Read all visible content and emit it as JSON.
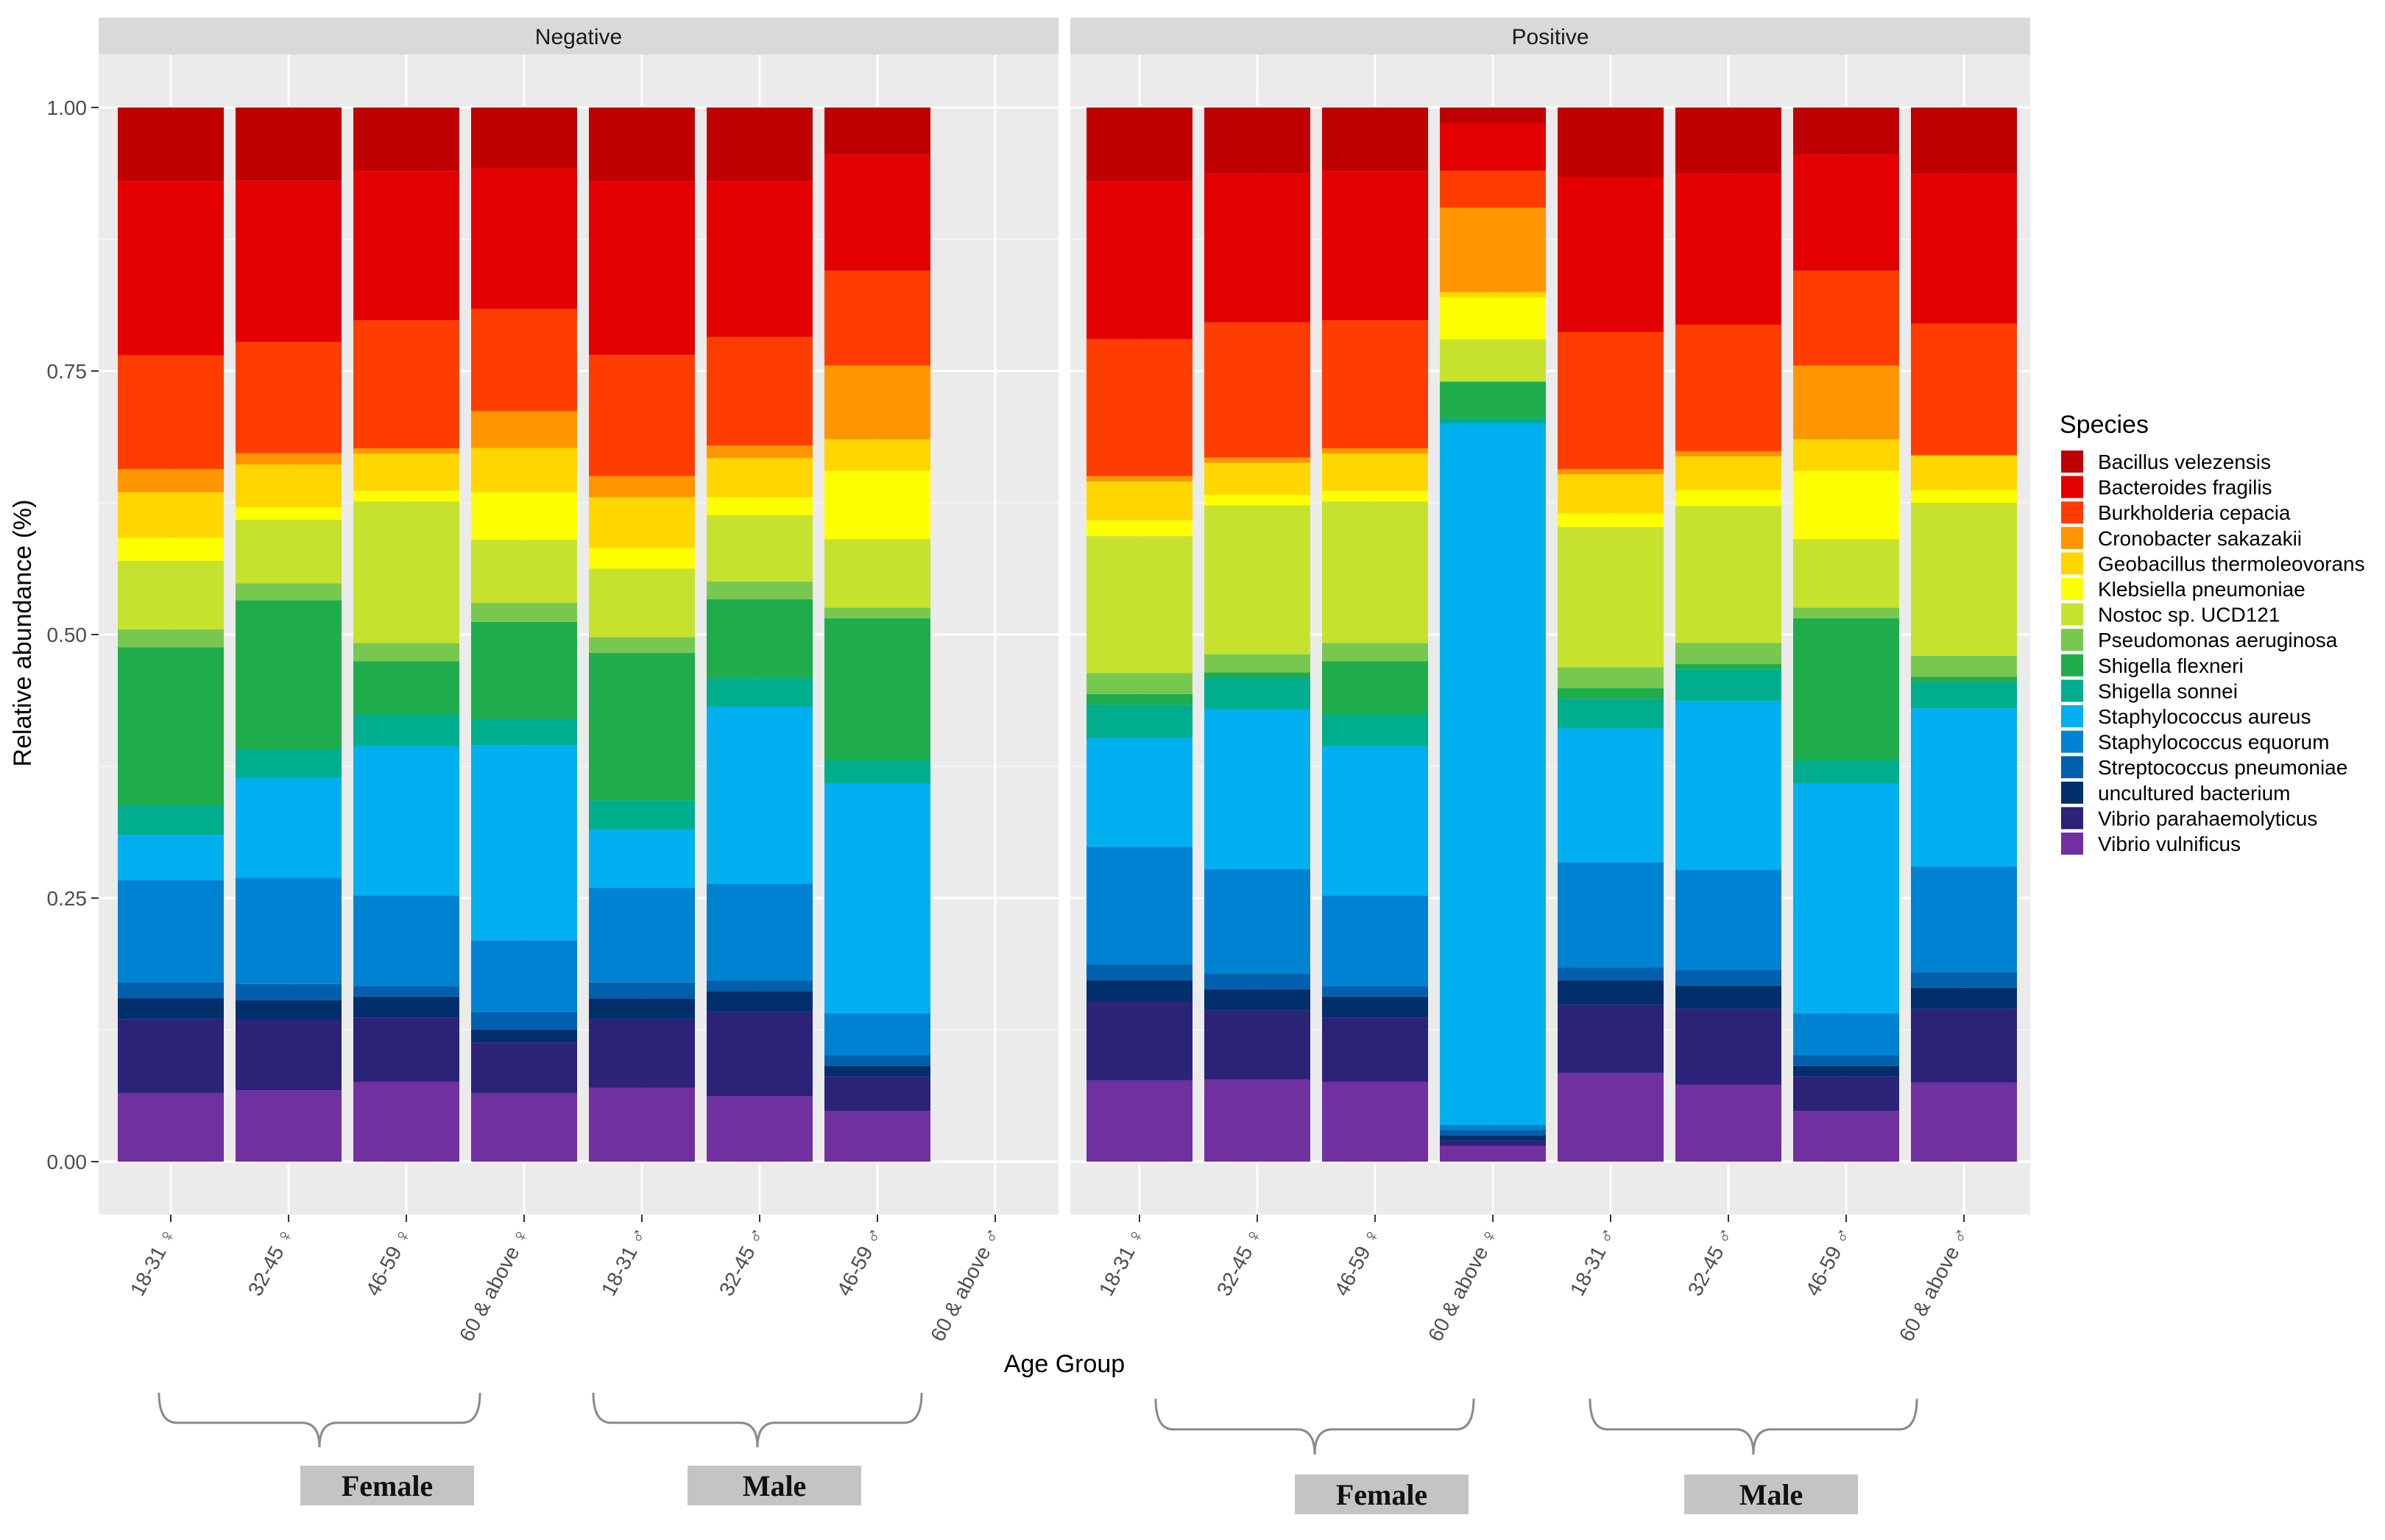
{
  "chart_data": {
    "type": "bar",
    "stacked": true,
    "ylabel": "Relative abundance (%)",
    "xlabel": "Age Group",
    "ylim": [
      0,
      1
    ],
    "yticks": [
      "0.00",
      "0.25",
      "0.50",
      "0.75",
      "1.00"
    ],
    "legend_title": "Species",
    "legend_position": "right",
    "species": [
      {
        "name": "Bacillus velezensis",
        "color": "#c00000"
      },
      {
        "name": "Bacteroides fragilis",
        "color": "#e30000"
      },
      {
        "name": "Burkholderia cepacia",
        "color": "#ff3d00"
      },
      {
        "name": "Cronobacter sakazakii",
        "color": "#ff9500"
      },
      {
        "name": "Geobacillus thermoleovorans",
        "color": "#ffd600"
      },
      {
        "name": "Klebsiella pneumoniae",
        "color": "#ffff00"
      },
      {
        "name": "Nostoc sp. UCD121",
        "color": "#c6e22e"
      },
      {
        "name": "Pseudomonas aeruginosa",
        "color": "#78c850"
      },
      {
        "name": "Shigella flexneri",
        "color": "#1fac4b"
      },
      {
        "name": "Shigella sonnei",
        "color": "#00ad8c"
      },
      {
        "name": "Staphylococcus aureus",
        "color": "#00b0f0"
      },
      {
        "name": "Staphylococcus equorum",
        "color": "#0082d2"
      },
      {
        "name": "Streptococcus pneumoniae",
        "color": "#0060ac"
      },
      {
        "name": "uncultured bacterium",
        "color": "#002f6c"
      },
      {
        "name": "Vibrio parahaemolyticus",
        "color": "#2a2378"
      },
      {
        "name": "Vibrio vulnificus",
        "color": "#7030a0"
      }
    ],
    "categories": [
      "18-31 ♀",
      "32-45 ♀",
      "46-59 ♀",
      "60 & above ♀",
      "18-31 ♂",
      "32-45 ♂",
      "46-59 ♂",
      "60 & above ♂"
    ],
    "panels": [
      {
        "title": "Negative",
        "bars": [
          [
            0.07,
            0.165,
            0.108,
            0.022,
            0.043,
            0.022,
            0.065,
            0.017,
            0.15,
            0.028,
            0.043,
            0.097,
            0.015,
            0.02,
            0.07,
            0.065
          ],
          [
            0.077,
            0.17,
            0.117,
            0.012,
            0.045,
            0.013,
            0.067,
            0.018,
            0.157,
            0.03,
            0.105,
            0.112,
            0.017,
            0.02,
            0.075,
            0.075
          ],
          [
            0.06,
            0.14,
            0.12,
            0.005,
            0.035,
            0.01,
            0.133,
            0.017,
            0.05,
            0.03,
            0.14,
            0.085,
            0.01,
            0.02,
            0.06,
            0.075
          ],
          [
            0.058,
            0.133,
            0.097,
            0.035,
            0.042,
            0.045,
            0.06,
            0.018,
            0.092,
            0.025,
            0.185,
            0.068,
            0.017,
            0.012,
            0.048,
            0.065
          ],
          [
            0.07,
            0.165,
            0.115,
            0.02,
            0.048,
            0.02,
            0.065,
            0.015,
            0.14,
            0.028,
            0.055,
            0.09,
            0.015,
            0.02,
            0.065,
            0.07
          ],
          [
            0.07,
            0.148,
            0.103,
            0.012,
            0.037,
            0.017,
            0.063,
            0.017,
            0.075,
            0.027,
            0.168,
            0.092,
            0.01,
            0.02,
            0.08,
            0.062
          ],
          [
            0.045,
            0.11,
            0.09,
            0.07,
            0.03,
            0.065,
            0.065,
            0.01,
            0.135,
            0.022,
            0.218,
            0.04,
            0.01,
            0.01,
            0.033,
            0.048
          ],
          null
        ]
      },
      {
        "title": "Positive",
        "bars": [
          [
            0.07,
            0.15,
            0.13,
            0.005,
            0.037,
            0.015,
            0.13,
            0.02,
            0.01,
            0.032,
            0.103,
            0.112,
            0.015,
            0.02,
            0.075,
            0.077
          ],
          [
            0.062,
            0.14,
            0.127,
            0.005,
            0.03,
            0.01,
            0.14,
            0.017,
            0.005,
            0.03,
            0.15,
            0.098,
            0.015,
            0.02,
            0.065,
            0.077
          ],
          [
            0.06,
            0.14,
            0.12,
            0.005,
            0.035,
            0.01,
            0.133,
            0.017,
            0.05,
            0.03,
            0.14,
            0.085,
            0.01,
            0.02,
            0.06,
            0.075
          ],
          [
            0.015,
            0.045,
            0.035,
            0.08,
            0.005,
            0.04,
            0.04,
            0.0,
            0.035,
            0.005,
            0.665,
            0.005,
            0.005,
            0.005,
            0.005,
            0.015
          ],
          [
            0.066,
            0.147,
            0.13,
            0.005,
            0.037,
            0.013,
            0.133,
            0.02,
            0.01,
            0.028,
            0.127,
            0.1,
            0.012,
            0.023,
            0.065,
            0.084
          ],
          [
            0.063,
            0.143,
            0.12,
            0.005,
            0.032,
            0.015,
            0.13,
            0.02,
            0.005,
            0.03,
            0.16,
            0.095,
            0.015,
            0.022,
            0.072,
            0.073
          ],
          [
            0.045,
            0.11,
            0.09,
            0.07,
            0.03,
            0.065,
            0.065,
            0.01,
            0.135,
            0.022,
            0.218,
            0.04,
            0.01,
            0.01,
            0.033,
            0.048
          ],
          [
            0.063,
            0.142,
            0.125,
            0.0,
            0.033,
            0.012,
            0.145,
            0.02,
            0.005,
            0.025,
            0.15,
            0.1,
            0.015,
            0.02,
            0.07,
            0.075
          ]
        ]
      }
    ],
    "group_annotations": [
      "Female",
      "Male",
      "Female",
      "Male"
    ]
  }
}
